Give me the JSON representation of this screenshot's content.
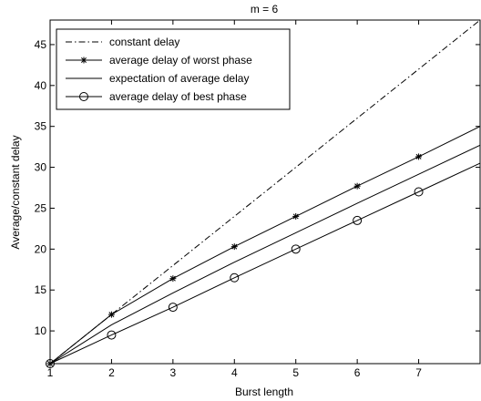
{
  "chart_data": {
    "type": "line",
    "title": "m =  6",
    "xlabel": "Burst length",
    "ylabel": "Average/constant delay",
    "xlim": [
      1,
      8
    ],
    "ylim": [
      6,
      48
    ],
    "xticks": [
      1,
      2,
      3,
      4,
      5,
      6,
      7
    ],
    "yticks": [
      10,
      15,
      20,
      25,
      30,
      35,
      40,
      45
    ],
    "grid": false,
    "legend_position": "top-left",
    "series": [
      {
        "name": "constant delay",
        "style": "dash-dot",
        "marker": "none",
        "x": [
          1,
          2,
          3,
          4,
          5,
          6,
          7,
          8
        ],
        "y": [
          6,
          12,
          18,
          24,
          30,
          36,
          42,
          48
        ]
      },
      {
        "name": "average delay of worst phase",
        "style": "solid",
        "marker": "star",
        "x": [
          1,
          2,
          3,
          4,
          5,
          6,
          7,
          8
        ],
        "y": [
          6,
          12,
          16.4,
          20.3,
          24,
          27.7,
          31.3,
          35
        ]
      },
      {
        "name": "expectation of average delay",
        "style": "solid",
        "marker": "none",
        "x": [
          1,
          2,
          3,
          4,
          5,
          6,
          7,
          8
        ],
        "y": [
          6,
          10.75,
          14.65,
          18.4,
          22,
          25.6,
          29.15,
          32.7
        ]
      },
      {
        "name": "average delay of best phase",
        "style": "solid",
        "marker": "circle",
        "x": [
          1,
          2,
          3,
          4,
          5,
          6,
          7,
          8
        ],
        "y": [
          6,
          9.5,
          12.9,
          16.5,
          20,
          23.5,
          27,
          30.5
        ]
      }
    ]
  }
}
